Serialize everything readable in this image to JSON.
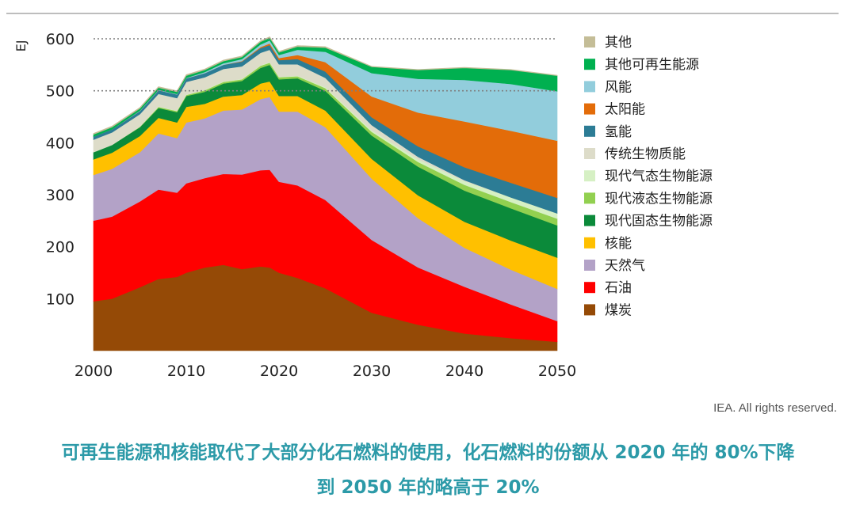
{
  "chart_data": {
    "type": "area",
    "stacked": true,
    "ylabel": "EJ",
    "xlim": [
      2000,
      2050
    ],
    "ylim": [
      0,
      610
    ],
    "x_ticks": [
      2000,
      2010,
      2020,
      2030,
      2040,
      2050
    ],
    "y_ticks": [
      100,
      200,
      300,
      400,
      500,
      600
    ],
    "gridlines_dotted": [
      500,
      600
    ],
    "legend_position": "right",
    "x": [
      2000,
      2002,
      2005,
      2007,
      2009,
      2010,
      2012,
      2014,
      2016,
      2018,
      2019,
      2020,
      2022,
      2025,
      2030,
      2035,
      2040,
      2045,
      2050
    ],
    "series": [
      {
        "name": "煤炭",
        "color": "#954a06",
        "values": [
          95,
          100,
          122,
          138,
          142,
          150,
          160,
          165,
          157,
          162,
          160,
          150,
          140,
          120,
          73,
          50,
          33,
          24,
          17
        ]
      },
      {
        "name": "石油",
        "color": "#ff0000",
        "values": [
          155,
          158,
          165,
          172,
          162,
          172,
          172,
          175,
          182,
          185,
          188,
          175,
          178,
          170,
          140,
          110,
          90,
          65,
          40
        ]
      },
      {
        "name": "天然气",
        "color": "#b3a2c7",
        "values": [
          88,
          92,
          95,
          108,
          105,
          117,
          115,
          122,
          125,
          137,
          140,
          135,
          142,
          140,
          118,
          95,
          75,
          67,
          62
        ]
      },
      {
        "name": "核能",
        "color": "#ffc000",
        "values": [
          30,
          31,
          31,
          30,
          30,
          30,
          28,
          27,
          28,
          30,
          30,
          30,
          30,
          32,
          38,
          44,
          50,
          56,
          60
        ]
      },
      {
        "name": "现代固态生物能源",
        "color": "#0b8a3a",
        "values": [
          14,
          15,
          17,
          19,
          20,
          21,
          23,
          25,
          27,
          30,
          32,
          32,
          34,
          38,
          45,
          55,
          60,
          62,
          62
        ]
      },
      {
        "name": "现代液态生物能源",
        "color": "#92d050",
        "values": [
          0,
          0,
          1,
          2,
          2,
          2,
          3,
          3,
          3,
          4,
          4,
          4,
          4,
          5,
          7,
          9,
          11,
          12,
          13
        ]
      },
      {
        "name": "现代气态生物能源",
        "color": "#d6f0c4",
        "values": [
          0,
          0,
          0,
          1,
          1,
          1,
          1,
          1,
          1,
          1,
          1,
          1,
          1,
          2,
          3,
          5,
          7,
          9,
          10
        ]
      },
      {
        "name": "传统生物质能",
        "color": "#dddcc9",
        "values": [
          24,
          24,
          24,
          24,
          24,
          24,
          24,
          24,
          24,
          24,
          24,
          24,
          22,
          18,
          10,
          5,
          2,
          0,
          0
        ]
      },
      {
        "name": "氢能",
        "color": "#2c7c95",
        "values": [
          6,
          6,
          6,
          7,
          7,
          7,
          8,
          8,
          9,
          9,
          9,
          8,
          10,
          12,
          15,
          20,
          25,
          28,
          30
        ]
      },
      {
        "name": "太阳能",
        "color": "#e36c09",
        "values": [
          0,
          0,
          0,
          0,
          0,
          0,
          0,
          0,
          1,
          2,
          3,
          4,
          8,
          18,
          40,
          65,
          88,
          100,
          110
        ]
      },
      {
        "name": "风能",
        "color": "#92cddc",
        "values": [
          0,
          0,
          1,
          1,
          1,
          1,
          2,
          3,
          4,
          5,
          6,
          6,
          10,
          20,
          45,
          65,
          80,
          90,
          95
        ]
      },
      {
        "name": "其他可再生能源",
        "color": "#00b050",
        "values": [
          4,
          4,
          4,
          4,
          4,
          4,
          4,
          4,
          4,
          5,
          5,
          5,
          6,
          8,
          12,
          17,
          23,
          27,
          30
        ]
      },
      {
        "name": "其他",
        "color": "#c4bd97",
        "values": [
          2,
          2,
          2,
          2,
          2,
          2,
          2,
          2,
          2,
          2,
          2,
          2,
          2,
          2,
          1,
          1,
          1,
          1,
          1
        ]
      }
    ]
  },
  "credit": "IEA. All rights reserved.",
  "caption": {
    "line1": "可再生能源和核能取代了大部分化石燃料的使用，化石燃料的份额从 2020 年的 80%下降",
    "line2": "到 2050 年的略高于 20%"
  }
}
